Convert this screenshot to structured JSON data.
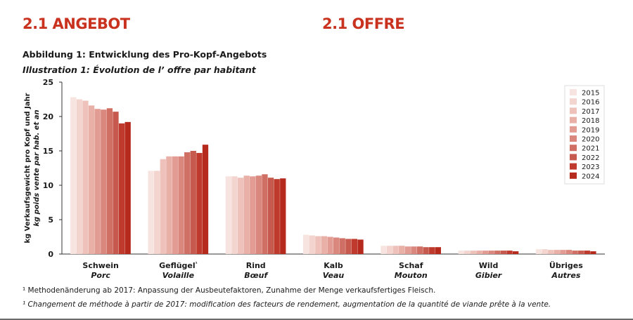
{
  "header": {
    "title_de": "2.1 ANGEBOT",
    "title_fr": "2.1 OFFRE",
    "figure_de": "Abbildung 1: Entwicklung des Pro-Kopf-Angebots",
    "figure_fr": "Illustration 1: Évolution de l’ offre par habitant"
  },
  "chart_data": {
    "type": "bar",
    "ylabel_de": "kg Verkaufsgewicht pro Kopf und Jahr",
    "ylabel_fr": "kg poids vente par hab. et an",
    "ylim": [
      0,
      25
    ],
    "yticks": [
      0,
      5,
      10,
      15,
      20,
      25
    ],
    "legend_position": "top-right",
    "categories": [
      {
        "de": "Schwein",
        "fr": "Porc"
      },
      {
        "de": "Geflügel",
        "fr": "Volaille",
        "sup": "¹"
      },
      {
        "de": "Rind",
        "fr": "Bœuf"
      },
      {
        "de": "Kalb",
        "fr": "Veau"
      },
      {
        "de": "Schaf",
        "fr": "Mouton"
      },
      {
        "de": "Wild",
        "fr": "Gibier"
      },
      {
        "de": "Übriges",
        "fr": "Autres"
      }
    ],
    "series": [
      {
        "name": "2015",
        "color": "#f7e4e0",
        "values": [
          22.8,
          12.1,
          11.3,
          2.8,
          1.2,
          0.5,
          0.7
        ]
      },
      {
        "name": "2016",
        "color": "#f3d4cf",
        "values": [
          22.5,
          12.1,
          11.3,
          2.7,
          1.2,
          0.5,
          0.7
        ]
      },
      {
        "name": "2017",
        "color": "#eec2bb",
        "values": [
          22.3,
          13.8,
          11.1,
          2.6,
          1.2,
          0.5,
          0.6
        ]
      },
      {
        "name": "2018",
        "color": "#e9b0a8",
        "values": [
          21.6,
          14.2,
          11.4,
          2.6,
          1.2,
          0.5,
          0.6
        ]
      },
      {
        "name": "2019",
        "color": "#e29c93",
        "values": [
          21.1,
          14.2,
          11.3,
          2.5,
          1.1,
          0.5,
          0.6
        ]
      },
      {
        "name": "2020",
        "color": "#da877d",
        "values": [
          21.0,
          14.2,
          11.4,
          2.4,
          1.1,
          0.5,
          0.6
        ]
      },
      {
        "name": "2021",
        "color": "#d07065",
        "values": [
          21.2,
          14.8,
          11.6,
          2.3,
          1.1,
          0.5,
          0.5
        ]
      },
      {
        "name": "2022",
        "color": "#c75a4e",
        "values": [
          20.7,
          15.0,
          11.1,
          2.2,
          1.0,
          0.5,
          0.5
        ]
      },
      {
        "name": "2023",
        "color": "#bf3a2c",
        "values": [
          19.0,
          14.7,
          10.9,
          2.2,
          1.0,
          0.5,
          0.5
        ]
      },
      {
        "name": "2024",
        "color": "#b62a1d",
        "values": [
          19.2,
          15.9,
          11.0,
          2.1,
          1.0,
          0.4,
          0.4
        ]
      }
    ]
  },
  "footnotes": {
    "de": "¹ Methodenänderung ab 2017: Anpassung der Ausbeutefaktoren, Zunahme der Menge verkaufsfertiges Fleisch.",
    "fr": "¹ Changement de méthode à partir de 2017: modification des facteurs de rendement, augmentation de la quantité de viande prête à la vente."
  }
}
